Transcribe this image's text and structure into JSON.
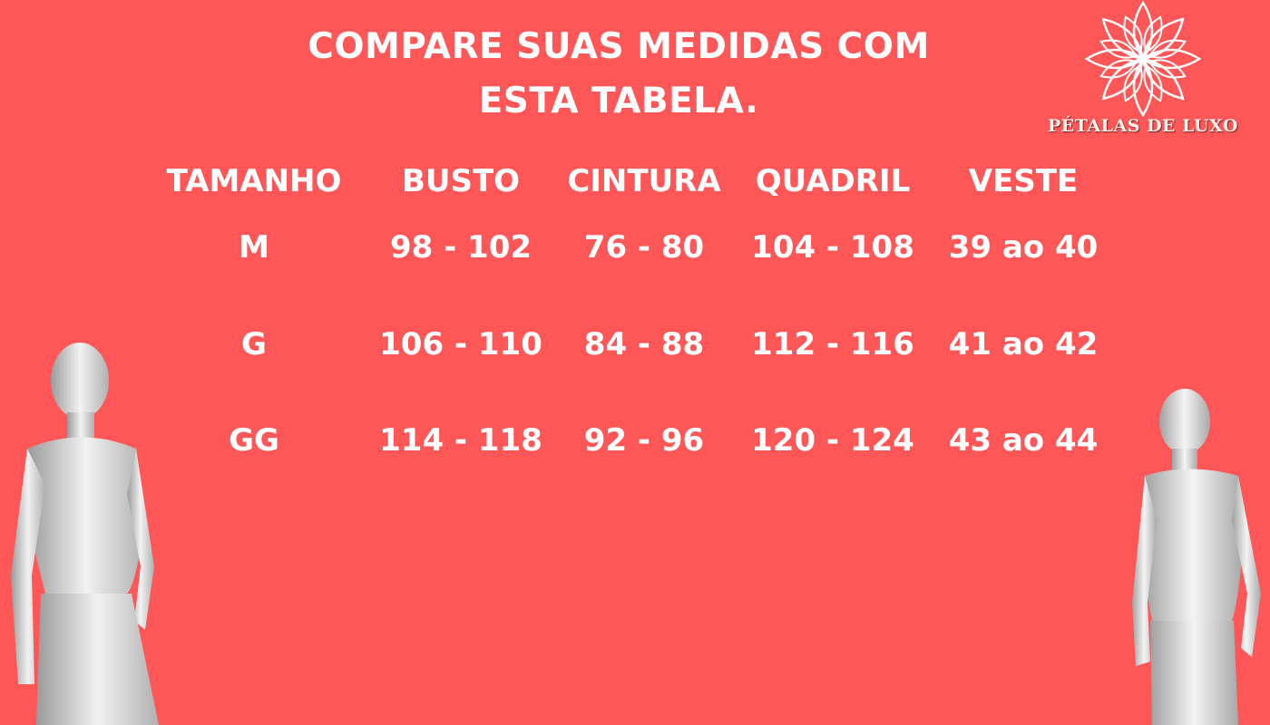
{
  "title": {
    "line1": "COMPARE SUAS MEDIDAS COM",
    "line2": "ESTA TABELA."
  },
  "brand": {
    "name": "PÉTALAS DE LUXO",
    "logo_icon": "lotus-flower-icon"
  },
  "colors": {
    "background": "#FF5757",
    "text": "#FFFFFF"
  },
  "table": {
    "headers": [
      "TAMANHO",
      "BUSTO",
      "CINTURA",
      "QUADRIL",
      "VESTE"
    ],
    "rows": [
      [
        "M",
        "98 - 102",
        "76 - 80",
        "104 - 108",
        "39 ao 40"
      ],
      [
        "G",
        "106 - 110",
        "84 - 88",
        "112 - 116",
        "41 ao 42"
      ],
      [
        "GG",
        "114 - 118",
        "92 - 96",
        "120 - 124",
        "43 ao 44"
      ]
    ]
  }
}
